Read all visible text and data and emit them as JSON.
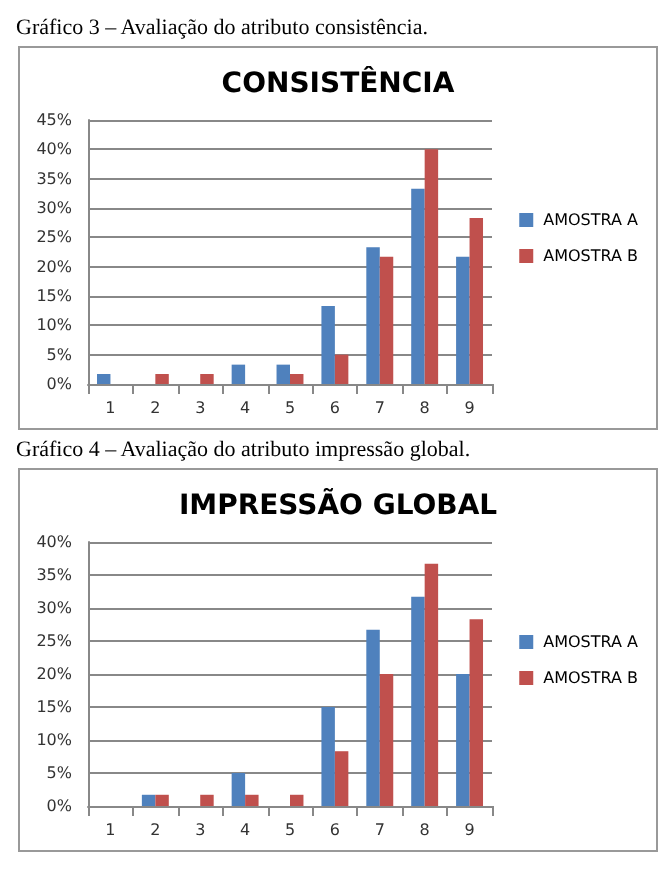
{
  "chart_data": [
    {
      "type": "bar",
      "title": "CONSISTÊNCIA",
      "annotations": [
        "Gráfico 3 – Avaliação do atributo consistência."
      ],
      "categories": [
        "1",
        "2",
        "3",
        "4",
        "5",
        "6",
        "7",
        "8",
        "9"
      ],
      "series": [
        {
          "name": "AMOSTRA A",
          "color": "#4f81bd",
          "values": [
            1.7,
            0,
            0,
            3.3,
            3.3,
            13.3,
            23.3,
            33.3,
            21.7
          ]
        },
        {
          "name": "AMOSTRA B",
          "color": "#c0504d",
          "values": [
            0,
            1.7,
            1.7,
            0,
            1.7,
            5,
            21.7,
            40,
            28.3
          ]
        }
      ],
      "ylim": [
        0,
        45
      ],
      "yticks": [
        {
          "value": 0,
          "label": "0%"
        },
        {
          "value": 5,
          "label": "5%"
        },
        {
          "value": 10,
          "label": "10%"
        },
        {
          "value": 15,
          "label": "15%"
        },
        {
          "value": 20,
          "label": "20%"
        },
        {
          "value": 25,
          "label": "25%"
        },
        {
          "value": 30,
          "label": "30%"
        },
        {
          "value": 35,
          "label": "35%"
        },
        {
          "value": 40,
          "label": "40%"
        },
        {
          "value": 45,
          "label": "45%"
        }
      ],
      "grid": "y",
      "legend": "right"
    },
    {
      "type": "bar",
      "title": "IMPRESSÃO GLOBAL",
      "annotations": [
        "Gráfico 4 – Avaliação do atributo impressão global."
      ],
      "categories": [
        "1",
        "2",
        "3",
        "4",
        "5",
        "6",
        "7",
        "8",
        "9"
      ],
      "series": [
        {
          "name": "AMOSTRA A",
          "color": "#4f81bd",
          "values": [
            0,
            1.7,
            0,
            5,
            0,
            15,
            26.7,
            31.7,
            20
          ]
        },
        {
          "name": "AMOSTRA B",
          "color": "#c0504d",
          "values": [
            0,
            1.7,
            1.7,
            1.7,
            1.7,
            8.3,
            20,
            36.7,
            28.3
          ]
        }
      ],
      "ylim": [
        0,
        40
      ],
      "yticks": [
        {
          "value": 0,
          "label": "0%"
        },
        {
          "value": 5,
          "label": "5%"
        },
        {
          "value": 10,
          "label": "10%"
        },
        {
          "value": 15,
          "label": "15%"
        },
        {
          "value": 20,
          "label": "20%"
        },
        {
          "value": 25,
          "label": "25%"
        },
        {
          "value": 30,
          "label": "30%"
        },
        {
          "value": 35,
          "label": "35%"
        },
        {
          "value": 40,
          "label": "40%"
        }
      ],
      "grid": "y",
      "legend": "right"
    }
  ]
}
